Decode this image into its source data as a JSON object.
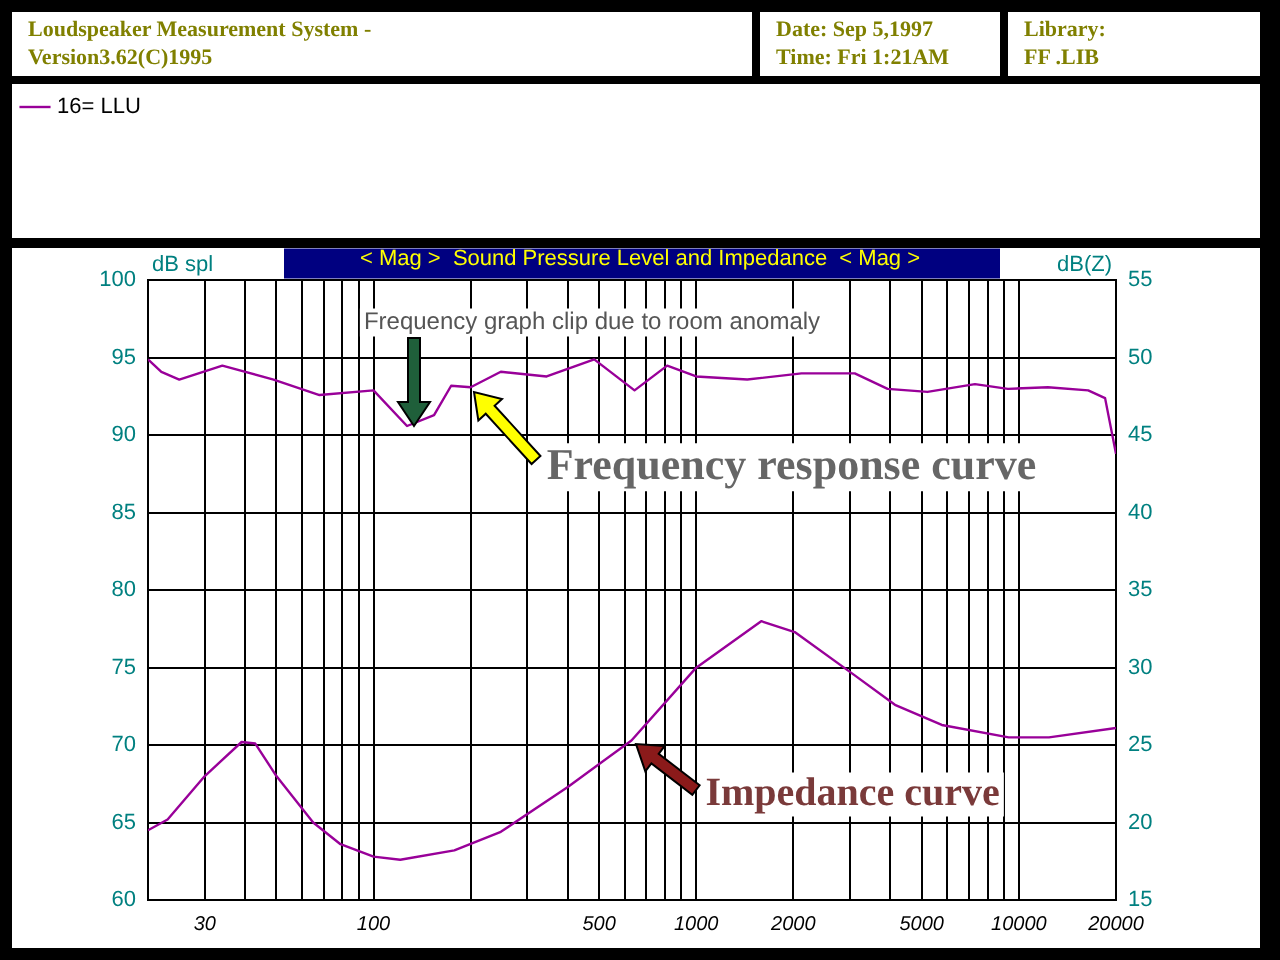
{
  "chart_data": {
    "type": "line",
    "title": "< Mag >  Sound Pressure Level and Impedance  < Mag >",
    "ylabel": "dB spl",
    "y2label": "dB(Z)",
    "annotations": [
      "Loudspeaker Measurement System -\nVersion3.62(C)1995",
      "Date: Sep  5,1997\nTime: Fri  1:21AM",
      "Library:\nFF      .LIB",
      "Frequency graph clip due to room anomaly",
      {
        "text": "Frequency response curve",
        "x": 200,
        "y": 93.1
      },
      {
        "text": "Impedance curve",
        "x": 630,
        "y": 70.3
      }
    ],
    "log": "x",
    "xlim": [
      20,
      20000
    ],
    "xticks": [
      {
        "value": 20,
        "label": null
      },
      {
        "value": 30,
        "label": "30"
      },
      {
        "value": 40,
        "label": null
      },
      {
        "value": 50,
        "label": null
      },
      {
        "value": 60,
        "label": null
      },
      {
        "value": 70,
        "label": null
      },
      {
        "value": 80,
        "label": null
      },
      {
        "value": 90,
        "label": null
      },
      {
        "value": 100,
        "label": "100"
      },
      {
        "value": 200,
        "label": null
      },
      {
        "value": 300,
        "label": null
      },
      {
        "value": 400,
        "label": null
      },
      {
        "value": 500,
        "label": "500"
      },
      {
        "value": 600,
        "label": null
      },
      {
        "value": 700,
        "label": null
      },
      {
        "value": 800,
        "label": null
      },
      {
        "value": 900,
        "label": null
      },
      {
        "value": 1000,
        "label": "1000"
      },
      {
        "value": 2000,
        "label": "2000"
      },
      {
        "value": 3000,
        "label": null
      },
      {
        "value": 4000,
        "label": null
      },
      {
        "value": 5000,
        "label": "5000"
      },
      {
        "value": 6000,
        "label": null
      },
      {
        "value": 7000,
        "label": null
      },
      {
        "value": 8000,
        "label": null
      },
      {
        "value": 9000,
        "label": null
      },
      {
        "value": 10000,
        "label": "10000"
      },
      {
        "value": 20000,
        "label": "20000"
      }
    ],
    "ylim": [
      60,
      100
    ],
    "yticks": [
      60,
      65,
      70,
      75,
      80,
      85,
      90,
      95,
      100
    ],
    "y2lim": [
      15,
      55
    ],
    "y2ticks": [
      15,
      20,
      25,
      30,
      35,
      40,
      45,
      50,
      55
    ],
    "grid": true,
    "legend": "top left",
    "marker": "none",
    "line_style": "solid",
    "series": [
      {
        "name": "16= LLU",
        "color": "#990099",
        "x": [
          20,
          22,
          25,
          34,
          49,
          68,
          100,
          127,
          154,
          174,
          200,
          248,
          344,
          483,
          644,
          813,
          1000,
          1440,
          2120,
          3100,
          3920,
          5210,
          7310,
          9250,
          12300,
          16400,
          18500,
          20000
        ],
        "values": [
          94.9,
          94.1,
          93.6,
          94.5,
          93.6,
          92.6,
          92.9,
          90.6,
          91.3,
          93.2,
          93.1,
          94.1,
          93.8,
          94.9,
          92.9,
          94.5,
          93.8,
          93.6,
          94.0,
          94.0,
          93.0,
          92.8,
          93.3,
          93.0,
          93.1,
          92.9,
          92.4,
          88.8
        ]
      },
      {
        "color": "#990099",
        "axis": "y2",
        "x": [
          20,
          23,
          30,
          39,
          43,
          50,
          65,
          79,
          100,
          121,
          178,
          248,
          400,
          630,
          1000,
          1590,
          2020,
          3100,
          4130,
          5770,
          9300,
          12400,
          20000
        ],
        "values": [
          19.5,
          20.2,
          23.0,
          25.2,
          25.1,
          23.0,
          20.0,
          18.6,
          17.8,
          17.6,
          18.2,
          19.4,
          22.3,
          25.3,
          30.0,
          33.0,
          32.3,
          29.5,
          27.6,
          26.3,
          25.5,
          25.5,
          26.1
        ]
      }
    ]
  }
}
